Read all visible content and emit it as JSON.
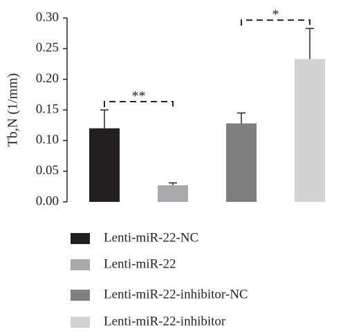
{
  "chart_data": {
    "type": "bar",
    "ylabel": "Tb,N (1/mm)",
    "ylim": [
      0,
      0.3
    ],
    "yticks": [
      "0.00",
      "0.05",
      "0.10",
      "0.15",
      "0.20",
      "0.25",
      "0.30"
    ],
    "grid": false,
    "legend_placement": "bottom",
    "categories": [
      "Lenti-miR-22-NC",
      "Lenti-miR-22",
      "Lenti-miR-22-inhibitor-NC",
      "Lenti-miR-22-inhibitor"
    ],
    "values": [
      0.12,
      0.027,
      0.128,
      0.233
    ],
    "errors": [
      0.03,
      0.004,
      0.017,
      0.05
    ],
    "colors": [
      "#231f20",
      "#a7a9ac",
      "#7f7f7f",
      "#d1d2d4"
    ],
    "significance": [
      {
        "between": [
          0,
          1
        ],
        "label": "**"
      },
      {
        "between": [
          2,
          3
        ],
        "label": "*"
      }
    ]
  }
}
